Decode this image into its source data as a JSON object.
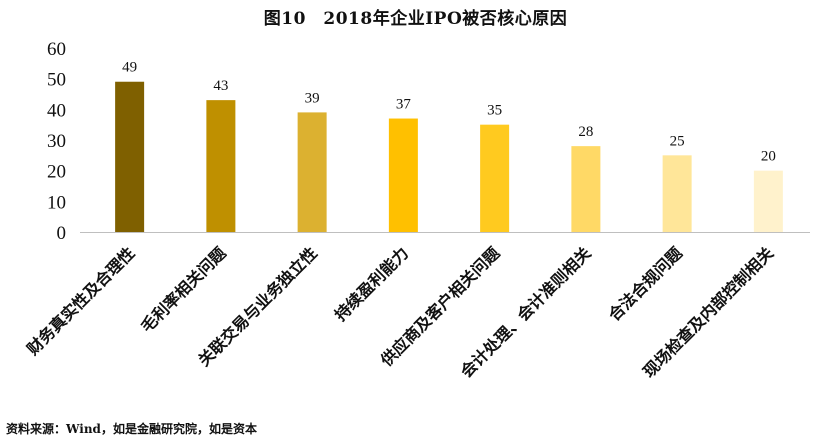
{
  "chart_data": {
    "type": "bar",
    "title": "图10　2018年企业IPO被否核心原因",
    "categories": [
      "财务真实性及合理性",
      "毛利率相关问题",
      "关联交易与业务独立性",
      "持续盈利能力",
      "供应商及客户相关问题",
      "会计处理、会计准则相关",
      "合法合规问题",
      "现场检查及内部控制相关"
    ],
    "values": [
      49,
      43,
      39,
      37,
      35,
      28,
      25,
      20
    ],
    "colors": [
      "#7f6000",
      "#bf9000",
      "#dcb130",
      "#ffc000",
      "#ffca1f",
      "#ffd966",
      "#ffe699",
      "#fff2cc"
    ],
    "ylim": [
      0,
      60
    ],
    "yticks": [
      0,
      10,
      20,
      30,
      40,
      50,
      60
    ],
    "xlabel": "",
    "ylabel": "",
    "grid": false,
    "legend": "none"
  },
  "source": "资料来源：Wind，如是金融研究院，如是资本"
}
